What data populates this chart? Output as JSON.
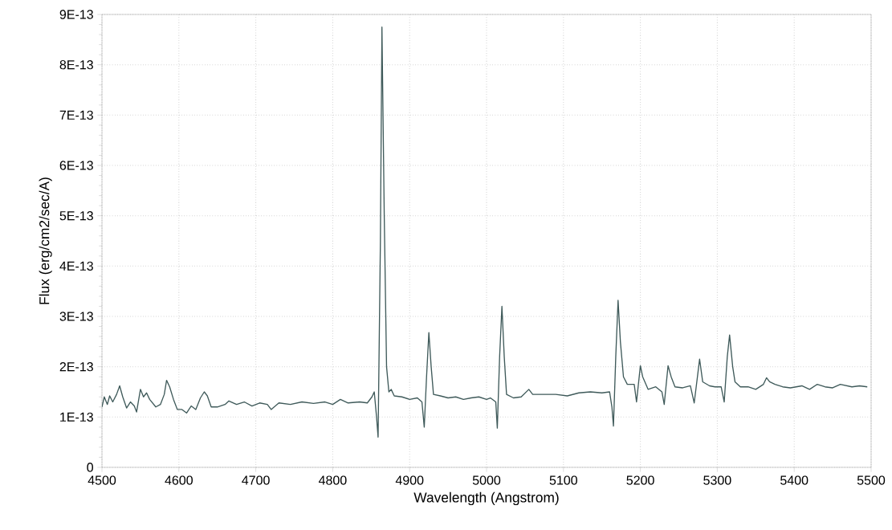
{
  "chart_data": {
    "type": "line",
    "xlabel": "Wavelength (Angstrom)",
    "ylabel": "Flux (erg/cm2/sec/A)",
    "xlim": [
      4500,
      5500
    ],
    "ylim": [
      0,
      9e-13
    ],
    "xticks": [
      4500,
      4600,
      4700,
      4800,
      4900,
      5000,
      5100,
      5200,
      5300,
      5400,
      5500
    ],
    "yticks": [
      0,
      {
        "value": 1e-13,
        "label": "1E-13"
      },
      {
        "value": 2e-13,
        "label": "2E-13"
      },
      {
        "value": 3e-13,
        "label": "3E-13"
      },
      {
        "value": 4e-13,
        "label": "4E-13"
      },
      {
        "value": 5e-13,
        "label": "5E-13"
      },
      {
        "value": 6e-13,
        "label": "6E-13"
      },
      {
        "value": 7e-13,
        "label": "7E-13"
      },
      {
        "value": 8e-13,
        "label": "8E-13"
      },
      {
        "value": 9e-13,
        "label": "9E-13"
      }
    ],
    "grid": true,
    "marker": "none",
    "line_style": "solid",
    "series": [
      {
        "color": "#3f5a5a",
        "x": [
          4500,
          4503,
          4507,
          4510,
          4514,
          4519,
          4523,
          4527,
          4532,
          4537,
          4542,
          4545,
          4550,
          4554,
          4558,
          4562,
          4570,
          4576,
          4581,
          4584,
          4588,
          4593,
          4598,
          4604,
          4610,
          4616,
          4622,
          4628,
          4633,
          4637,
          4642,
          4650,
          4660,
          4665,
          4675,
          4685,
          4695,
          4705,
          4715,
          4720,
          4730,
          4745,
          4760,
          4775,
          4790,
          4800,
          4810,
          4820,
          4835,
          4845,
          4851,
          4854,
          4857,
          4859,
          4862,
          4864,
          4867,
          4870,
          4873,
          4876,
          4880,
          4890,
          4900,
          4910,
          4916,
          4919,
          4922,
          4925,
          4928,
          4931,
          4940,
          4950,
          4960,
          4970,
          4980,
          4990,
          5000,
          5005,
          5012,
          5014,
          5017,
          5020,
          5023,
          5026,
          5035,
          5045,
          5055,
          5060,
          5075,
          5090,
          5105,
          5120,
          5135,
          5150,
          5160,
          5163,
          5165,
          5168,
          5171,
          5174,
          5178,
          5183,
          5192,
          5195,
          5200,
          5203,
          5210,
          5220,
          5228,
          5231,
          5236,
          5240,
          5245,
          5255,
          5265,
          5270,
          5275,
          5277,
          5281,
          5290,
          5297,
          5305,
          5309,
          5313,
          5316,
          5320,
          5323,
          5330,
          5340,
          5350,
          5360,
          5364,
          5368,
          5375,
          5385,
          5395,
          5410,
          5420,
          5430,
          5440,
          5450,
          5460,
          5475,
          5485,
          5495
        ],
        "values": [
          1.2e-13,
          1.4e-13,
          1.25e-13,
          1.42e-13,
          1.3e-13,
          1.45e-13,
          1.62e-13,
          1.4e-13,
          1.18e-13,
          1.3e-13,
          1.22e-13,
          1.1e-13,
          1.55e-13,
          1.4e-13,
          1.48e-13,
          1.35e-13,
          1.2e-13,
          1.25e-13,
          1.45e-13,
          1.73e-13,
          1.6e-13,
          1.35e-13,
          1.15e-13,
          1.15e-13,
          1.08e-13,
          1.22e-13,
          1.15e-13,
          1.38e-13,
          1.5e-13,
          1.42e-13,
          1.2e-13,
          1.2e-13,
          1.25e-13,
          1.32e-13,
          1.25e-13,
          1.3e-13,
          1.22e-13,
          1.28e-13,
          1.25e-13,
          1.15e-13,
          1.28e-13,
          1.25e-13,
          1.3e-13,
          1.27e-13,
          1.3e-13,
          1.25e-13,
          1.35e-13,
          1.28e-13,
          1.3e-13,
          1.28e-13,
          1.4e-13,
          1.5e-13,
          1e-13,
          6e-14,
          4.5e-13,
          8.75e-13,
          5e-13,
          2e-13,
          1.5e-13,
          1.55e-13,
          1.42e-13,
          1.4e-13,
          1.35e-13,
          1.38e-13,
          1.3e-13,
          8e-14,
          1.8e-13,
          2.68e-13,
          2e-13,
          1.45e-13,
          1.42e-13,
          1.38e-13,
          1.4e-13,
          1.35e-13,
          1.38e-13,
          1.4e-13,
          1.35e-13,
          1.38e-13,
          1.3e-13,
          7.8e-14,
          2.2e-13,
          3.2e-13,
          2.2e-13,
          1.45e-13,
          1.38e-13,
          1.4e-13,
          1.55e-13,
          1.45e-13,
          1.45e-13,
          1.45e-13,
          1.42e-13,
          1.48e-13,
          1.5e-13,
          1.48e-13,
          1.5e-13,
          1.2e-13,
          8.2e-14,
          2.2e-13,
          3.32e-13,
          2.5e-13,
          1.8e-13,
          1.65e-13,
          1.65e-13,
          1.3e-13,
          2.02e-13,
          1.8e-13,
          1.55e-13,
          1.6e-13,
          1.5e-13,
          1.25e-13,
          2.02e-13,
          1.8e-13,
          1.6e-13,
          1.58e-13,
          1.62e-13,
          1.28e-13,
          1.9e-13,
          2.15e-13,
          1.7e-13,
          1.62e-13,
          1.6e-13,
          1.6e-13,
          1.3e-13,
          2.2e-13,
          2.63e-13,
          2e-13,
          1.7e-13,
          1.6e-13,
          1.6e-13,
          1.55e-13,
          1.65e-13,
          1.78e-13,
          1.7e-13,
          1.65e-13,
          1.6e-13,
          1.58e-13,
          1.62e-13,
          1.55e-13,
          1.65e-13,
          1.6e-13,
          1.58e-13,
          1.65e-13,
          1.6e-13,
          1.62e-13,
          1.6e-13
        ]
      }
    ]
  }
}
